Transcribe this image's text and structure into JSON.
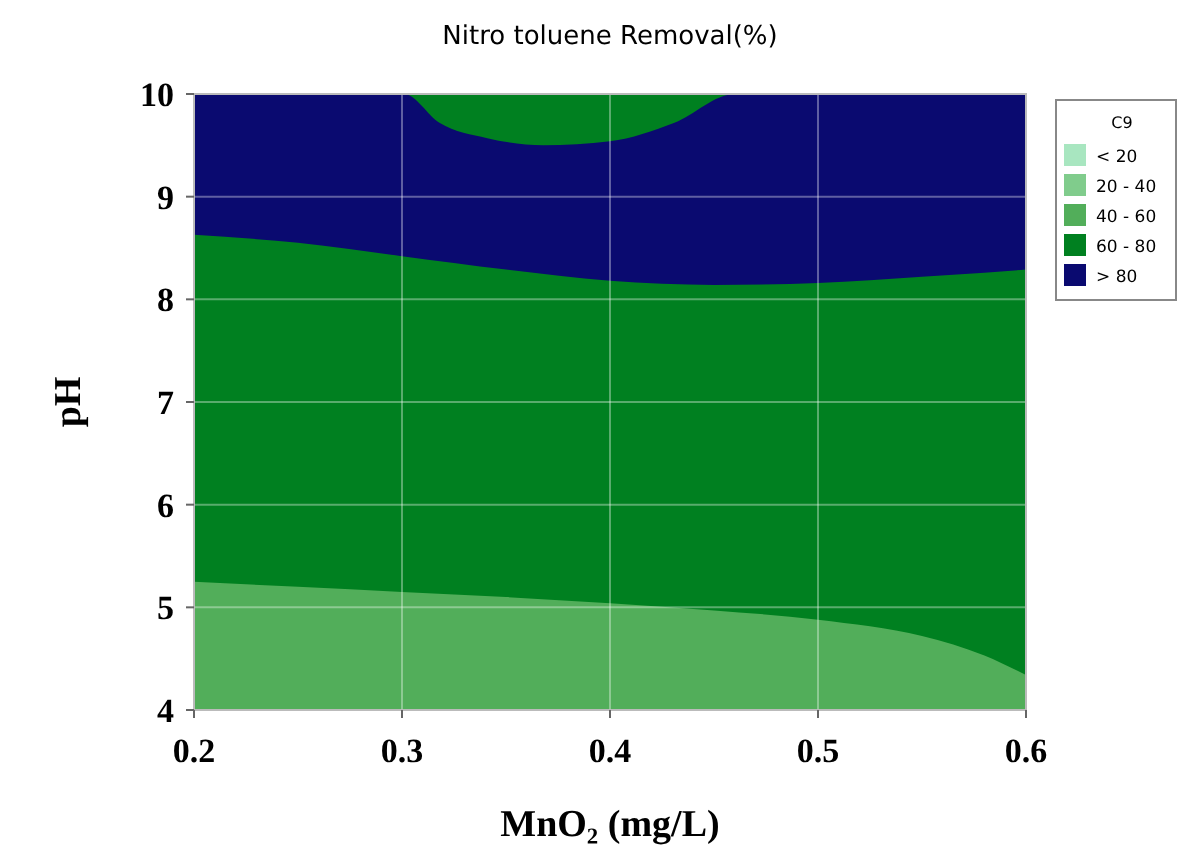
{
  "chart_data": {
    "type": "area",
    "title": "Nitro toluene Removal(%)",
    "xlabel": "MnO₂ (mg/L)",
    "ylabel": "pH",
    "legend_title": "C9",
    "xlim": [
      0.2,
      0.6
    ],
    "xticks": [
      0.2,
      0.3,
      0.4,
      0.5,
      0.6
    ],
    "ylim": [
      4,
      10
    ],
    "yticks": [
      4,
      5,
      6,
      7,
      8,
      9,
      10
    ],
    "grid": true,
    "legend": "right",
    "series": [
      {
        "name": "< 20",
        "color": "#a8e6c0"
      },
      {
        "name": "20 - 40",
        "color": "#80cc8c"
      },
      {
        "name": "40 - 60",
        "color": "#52ae5a",
        "x": [
          0.2,
          0.25,
          0.3,
          0.35,
          0.4,
          0.45,
          0.5,
          0.55,
          0.58,
          0.6
        ],
        "values": [
          5.25,
          5.2,
          5.15,
          5.1,
          5.04,
          4.97,
          4.88,
          4.72,
          4.53,
          4.34
        ]
      },
      {
        "name": "60 - 80",
        "color": "#008020",
        "x": [
          0.2,
          0.25,
          0.3,
          0.35,
          0.4,
          0.45,
          0.5,
          0.55,
          0.58,
          0.6
        ],
        "values": [
          8.63,
          8.55,
          8.42,
          8.29,
          8.18,
          8.14,
          8.16,
          8.22,
          8.26,
          8.29
        ]
      },
      {
        "name": "> 80",
        "color": "#0a0a70",
        "x": [
          0.2,
          0.25,
          0.3,
          0.301,
          0.318,
          0.341,
          0.368,
          0.4,
          0.431,
          0.46,
          0.5,
          0.55,
          0.58,
          0.6
        ],
        "values": [
          10,
          10,
          10,
          10,
          9.72,
          9.57,
          9.5,
          9.54,
          9.72,
          10,
          10,
          10,
          10,
          10
        ]
      },
      {
        "color": "#008020",
        "x": [
          0.301,
          0.318,
          0.341,
          0.368,
          0.4,
          0.431,
          0.46
        ],
        "values": [
          10,
          10,
          10,
          10,
          10,
          10,
          10
        ]
      }
    ]
  }
}
